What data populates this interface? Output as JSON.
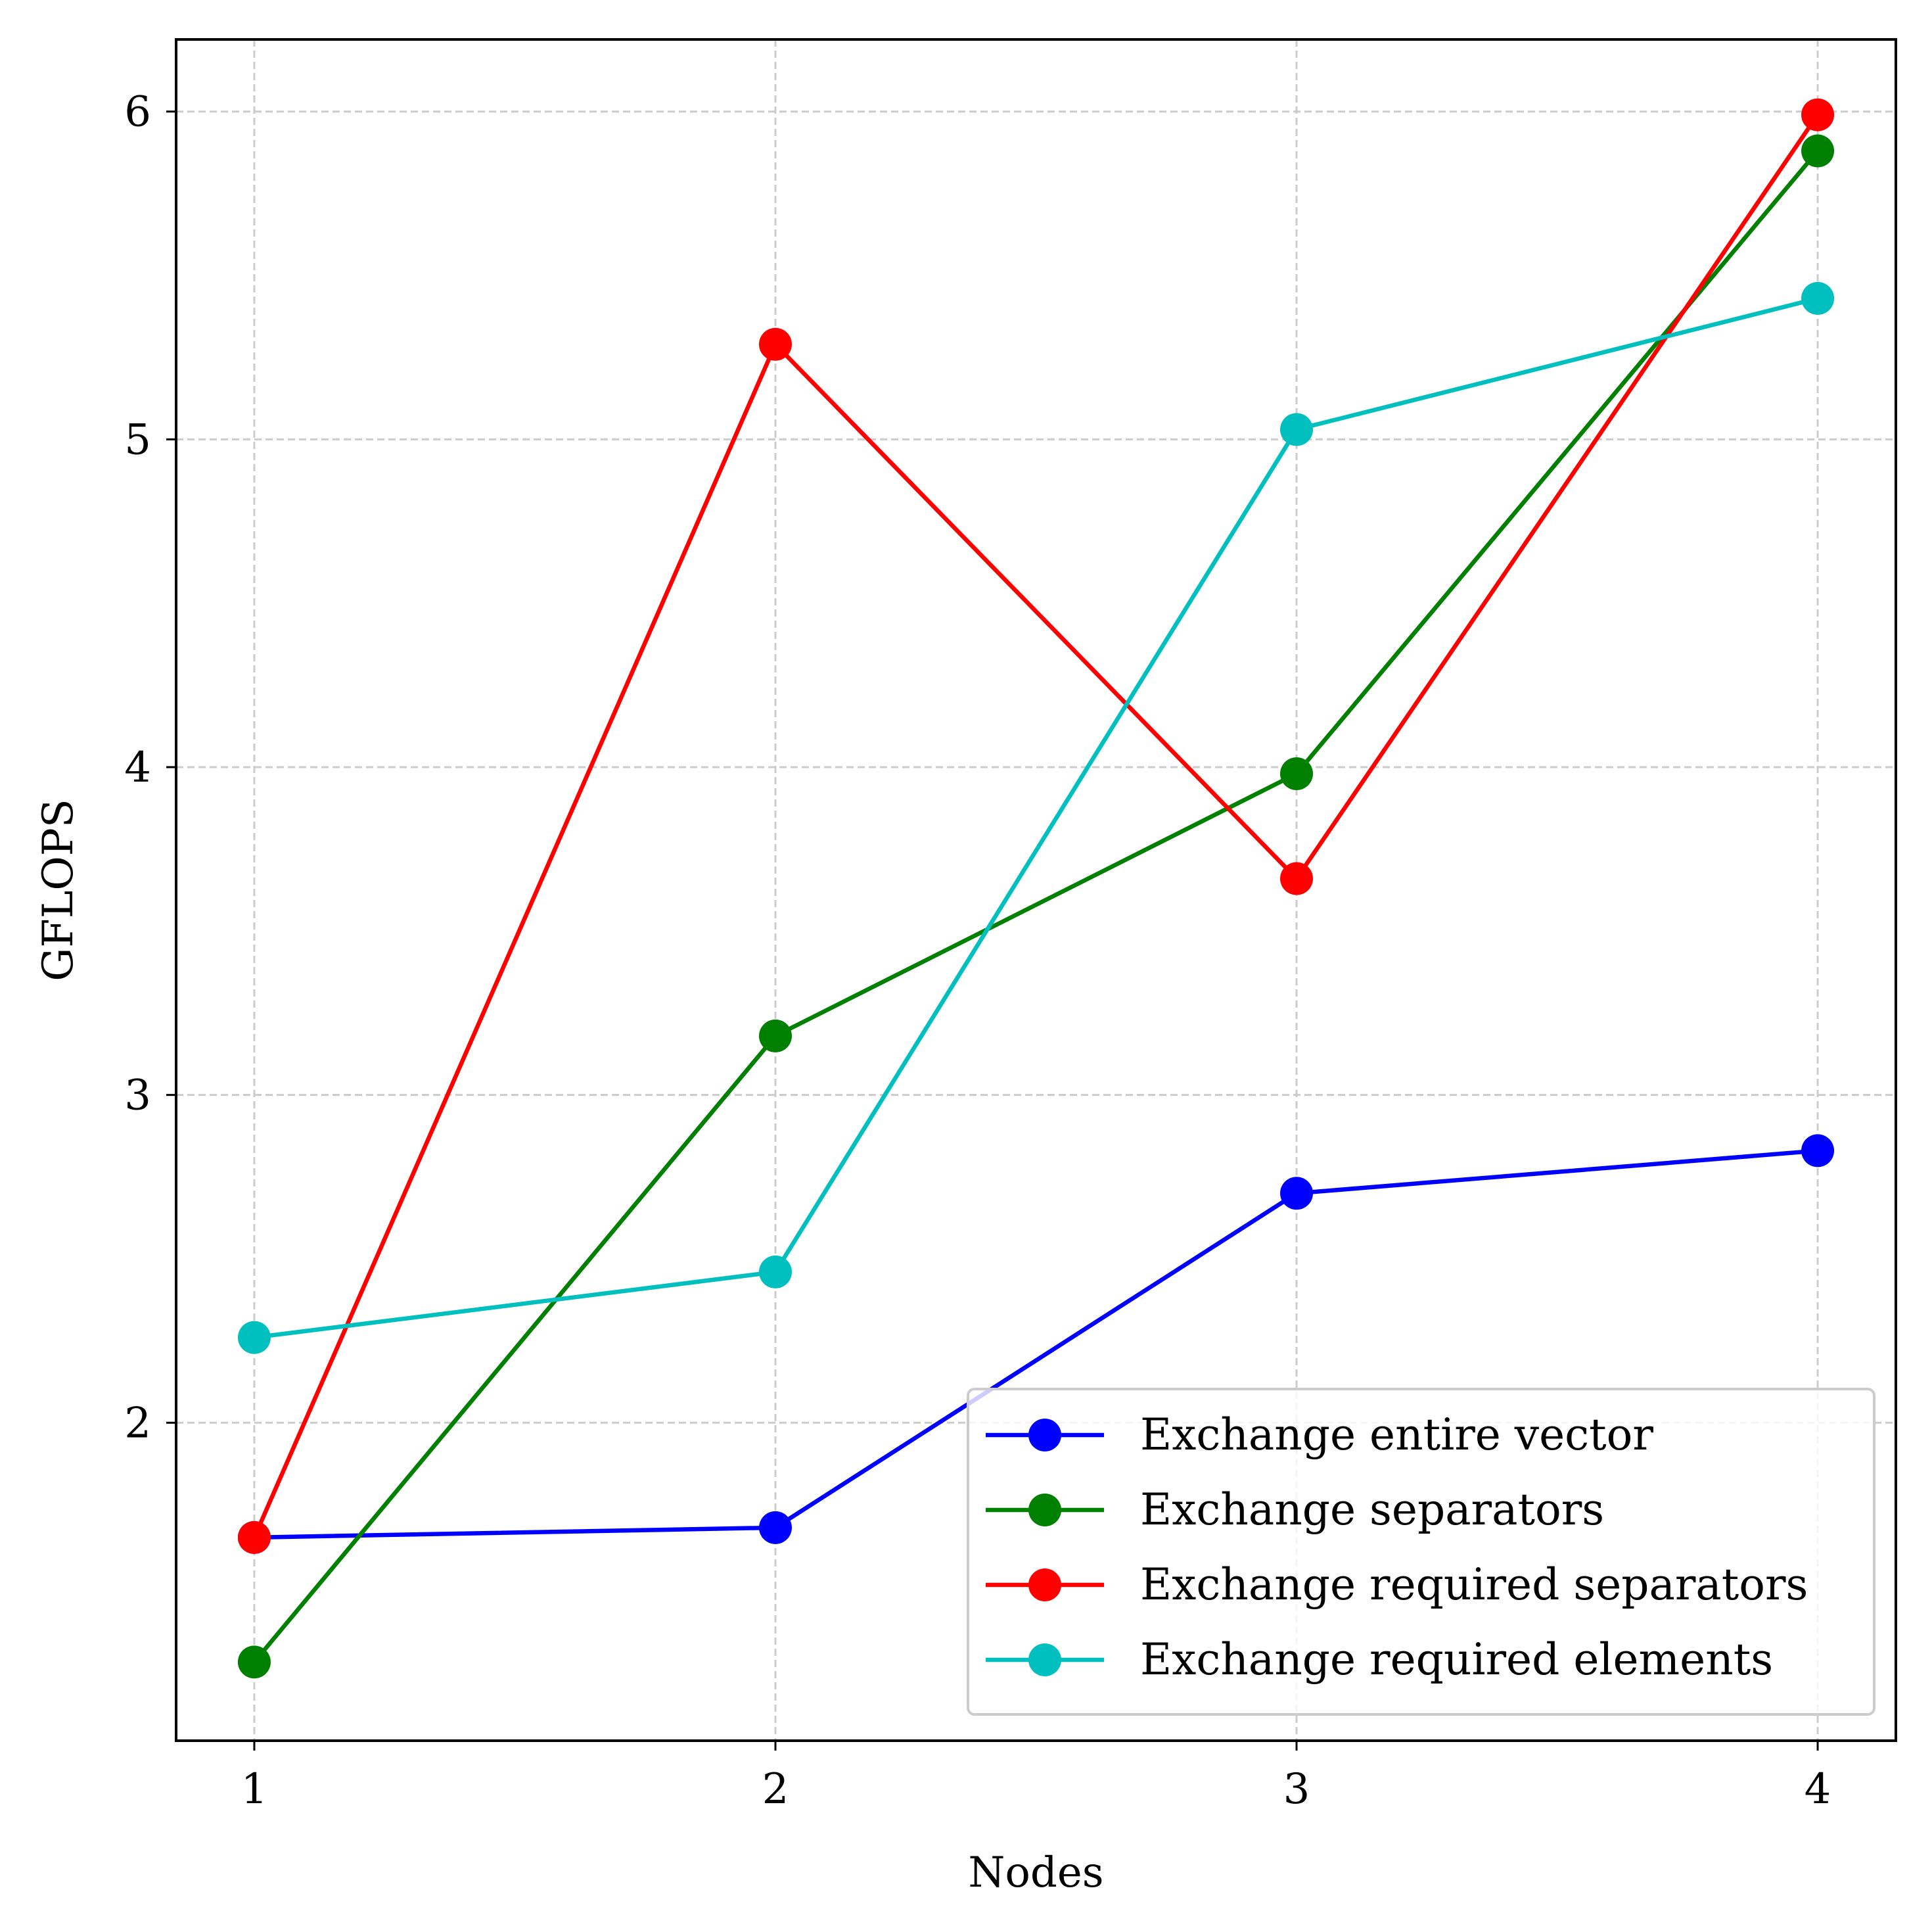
{
  "chart_data": {
    "type": "line",
    "title": "",
    "xlabel": "Nodes",
    "ylabel": "GFLOPS",
    "x": [
      1,
      2,
      3,
      4
    ],
    "xticks": [
      1,
      2,
      3,
      4
    ],
    "yticks": [
      2,
      3,
      4,
      5,
      6
    ],
    "xlim": [
      0.85,
      4.15
    ],
    "ylim": [
      1.03,
      6.22
    ],
    "grid": true,
    "legend_position": "bottom-right",
    "series": [
      {
        "name": "Exchange entire vector",
        "color": "#0000ff",
        "values": [
          1.65,
          1.68,
          2.7,
          2.83
        ]
      },
      {
        "name": "Exchange separators",
        "color": "#008000",
        "values": [
          1.27,
          3.18,
          3.98,
          5.88
        ]
      },
      {
        "name": "Exchange required separators",
        "color": "#ff0000",
        "values": [
          1.65,
          5.29,
          3.66,
          5.99
        ]
      },
      {
        "name": "Exchange required elements",
        "color": "#00bfbf",
        "values": [
          2.26,
          2.46,
          5.03,
          5.43
        ]
      }
    ]
  }
}
